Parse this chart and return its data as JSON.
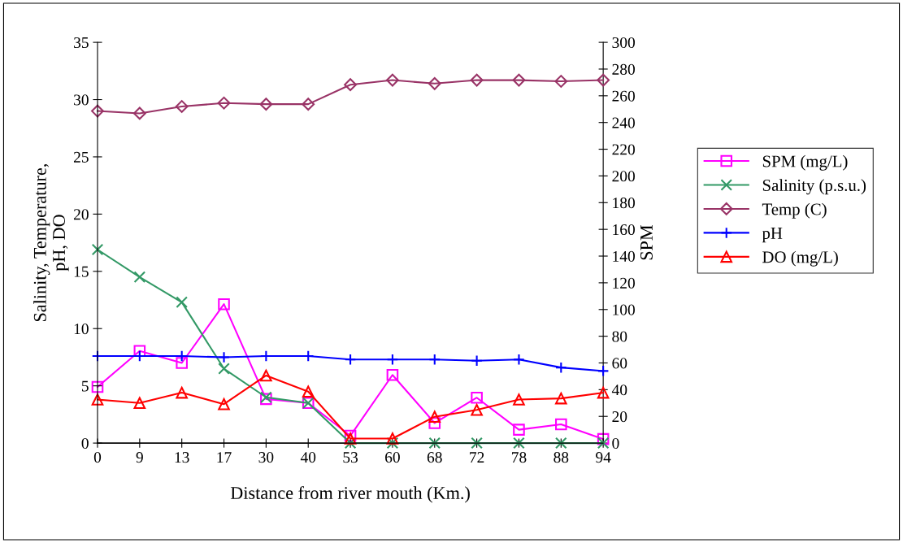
{
  "chart_data": {
    "type": "line",
    "xlabel": "Distance from river mouth (Km.)",
    "ylabel": "Salinity, Temperature,\npH, DO",
    "y2label": "SPM",
    "categories": [
      "0",
      "9",
      "13",
      "17",
      "30",
      "40",
      "53",
      "60",
      "68",
      "72",
      "78",
      "88",
      "94"
    ],
    "series": [
      {
        "name": "SPM (mg/L)",
        "color": "#ff00ff",
        "marker": "square",
        "axis": "y2",
        "values": [
          42,
          69,
          60,
          104,
          33,
          30,
          5.5,
          51,
          15,
          34,
          10,
          14,
          3
        ]
      },
      {
        "name": "Salinity (p.s.u.)",
        "color": "#339966",
        "marker": "cross",
        "values": [
          16.9,
          14.5,
          12.3,
          6.5,
          4.0,
          3.5,
          0,
          0,
          0,
          0,
          0,
          0,
          0
        ]
      },
      {
        "name": "Temp (C)",
        "color": "#993366",
        "marker": "diamond",
        "values": [
          29.0,
          28.8,
          29.4,
          29.7,
          29.6,
          29.6,
          31.3,
          31.7,
          31.4,
          31.7,
          31.7,
          31.6,
          31.7
        ]
      },
      {
        "name": "pH",
        "color": "#0000ff",
        "marker": "plus",
        "values": [
          7.6,
          7.6,
          7.6,
          7.5,
          7.6,
          7.6,
          7.3,
          7.3,
          7.3,
          7.2,
          7.3,
          6.6,
          6.3
        ]
      },
      {
        "name": "DO (mg/L)",
        "color": "#ff0000",
        "marker": "triangle",
        "values": [
          3.8,
          3.5,
          4.4,
          3.4,
          5.9,
          4.5,
          0.4,
          0.4,
          2.3,
          2.9,
          3.8,
          3.9,
          4.4
        ]
      }
    ],
    "ylim": [
      0,
      35
    ],
    "yticks": [
      0,
      5,
      10,
      15,
      20,
      25,
      30,
      35
    ],
    "y2lim": [
      0,
      300
    ],
    "y2ticks": [
      0,
      20,
      40,
      60,
      80,
      100,
      120,
      140,
      160,
      180,
      200,
      220,
      240,
      260,
      280,
      300
    ],
    "grid": false,
    "legend": "right",
    "line_style": "solid"
  }
}
